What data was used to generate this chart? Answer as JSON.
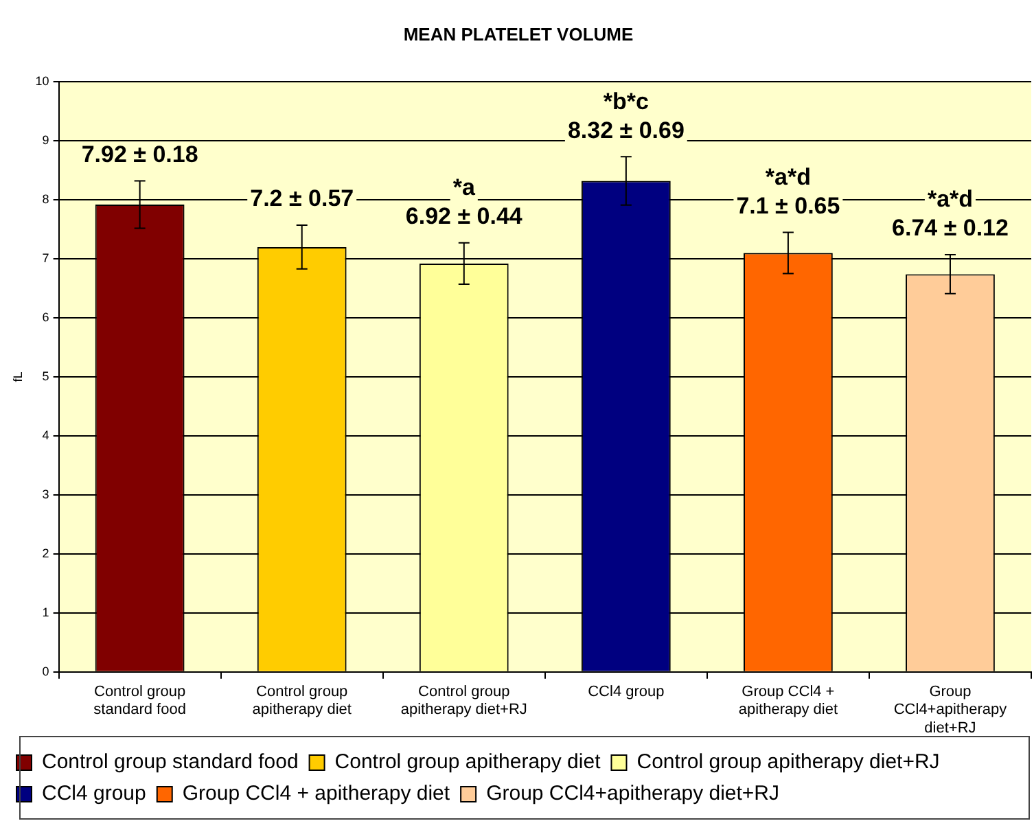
{
  "chart_data": {
    "type": "bar",
    "title": "MEAN PLATELET VOLUME",
    "ylabel": "fL",
    "categories": [
      "Control group standard food",
      "Control group apitherapy diet",
      "Control group apitherapy diet+RJ",
      "CCl4 group",
      "Group CCl4 + apitherapy diet",
      "Group CCl4+apitherapy diet+RJ"
    ],
    "series": [
      {
        "name": "Control group standard food",
        "color": "#800000",
        "values": [
          7.92,
          null,
          null,
          null,
          null,
          null
        ],
        "errors": [
          0.4,
          null,
          null,
          null,
          null,
          null
        ],
        "value_labels": [
          "7.92 ± 0.18",
          null,
          null,
          null,
          null,
          null
        ]
      },
      {
        "name": "Control group apitherapy diet",
        "color": "#ffcc00",
        "values": [
          null,
          7.2,
          null,
          null,
          null,
          null
        ],
        "errors": [
          null,
          0.37,
          null,
          null,
          null,
          null
        ],
        "value_labels": [
          null,
          "7.2 ± 0.57",
          null,
          null,
          null,
          null
        ]
      },
      {
        "name": "Control group apitherapy diet+RJ",
        "color": "#ffff99",
        "values": [
          null,
          null,
          6.92,
          null,
          null,
          null
        ],
        "errors": [
          null,
          null,
          0.35,
          null,
          null,
          null
        ],
        "value_labels": [
          null,
          null,
          "*a\n6.92 ± 0.44",
          null,
          null,
          null
        ]
      },
      {
        "name": "CCl4 group",
        "color": "#000080",
        "values": [
          null,
          null,
          null,
          8.32,
          null,
          null
        ],
        "errors": [
          null,
          null,
          null,
          0.41,
          null,
          null
        ],
        "value_labels": [
          null,
          null,
          null,
          "*b*c\n8.32 ± 0.69",
          null,
          null
        ]
      },
      {
        "name": "Group CCl4 + apitherapy diet",
        "color": "#ff6600",
        "values": [
          null,
          null,
          null,
          null,
          7.1,
          null
        ],
        "errors": [
          null,
          null,
          null,
          null,
          0.35,
          null
        ],
        "value_labels": [
          null,
          null,
          null,
          null,
          "*a*d\n7.1 ± 0.65",
          null
        ]
      },
      {
        "name": "Group CCl4+apitherapy diet+RJ",
        "color": "#ffcc99",
        "values": [
          null,
          null,
          null,
          null,
          null,
          6.74
        ],
        "errors": [
          null,
          null,
          null,
          null,
          null,
          0.33
        ],
        "value_labels": [
          null,
          null,
          null,
          null,
          null,
          "*a*d\n6.74 ± 0.12"
        ]
      }
    ],
    "ylim": [
      0,
      10
    ],
    "yticks": [
      0,
      1,
      2,
      3,
      4,
      5,
      6,
      7,
      8,
      9,
      10
    ],
    "grid": "y",
    "legend": "bottom"
  }
}
